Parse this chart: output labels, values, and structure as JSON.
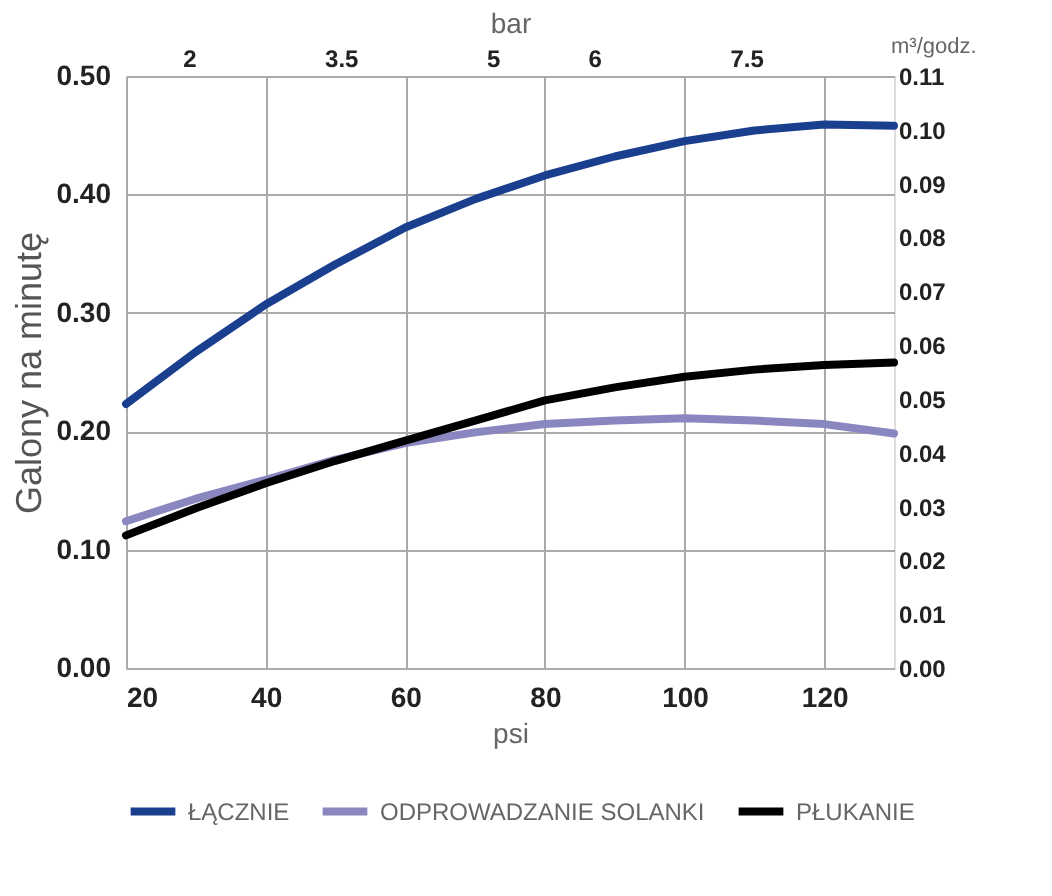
{
  "chart_data": {
    "type": "line",
    "xlabel": "psi",
    "ylabel": "Galony na minutę",
    "y2label": "m³/godz.",
    "x2label": "bar",
    "x": [
      20,
      30,
      40,
      50,
      60,
      70,
      80,
      90,
      100,
      110,
      120,
      130
    ],
    "series": [
      {
        "name": "ŁĄCZNIE",
        "color": "#1a3f8f",
        "values": [
          0.223,
          0.267,
          0.307,
          0.341,
          0.372,
          0.396,
          0.416,
          0.432,
          0.445,
          0.454,
          0.459,
          0.458
        ]
      },
      {
        "name": "ODPROWADZANIE SOLANKI",
        "color": "#8a86c0",
        "values": [
          0.124,
          0.143,
          0.159,
          0.176,
          0.19,
          0.199,
          0.206,
          0.209,
          0.211,
          0.209,
          0.206,
          0.198
        ]
      },
      {
        "name": "PŁUKANIE",
        "color": "#000000",
        "values": [
          0.112,
          0.135,
          0.156,
          0.175,
          0.192,
          0.209,
          0.226,
          0.237,
          0.246,
          0.252,
          0.256,
          0.258
        ]
      }
    ],
    "xlim": [
      20,
      130
    ],
    "xticks": [
      20,
      40,
      60,
      80,
      100,
      120
    ],
    "ylim": [
      0,
      0.5
    ],
    "yticks": [
      {
        "value": 0,
        "label": "0.00"
      },
      {
        "value": 0.1,
        "label": "0.10"
      },
      {
        "value": 0.2,
        "label": "0.20"
      },
      {
        "value": 0.3,
        "label": "0.30"
      },
      {
        "value": 0.4,
        "label": "0.40"
      },
      {
        "value": 0.5,
        "label": "0.50"
      }
    ],
    "y2lim": [
      0,
      0.11
    ],
    "y2ticks": [
      {
        "value": 0,
        "label": "0.00"
      },
      {
        "value": 0.01,
        "label": "0.01"
      },
      {
        "value": 0.02,
        "label": "0.02"
      },
      {
        "value": 0.03,
        "label": "0.03"
      },
      {
        "value": 0.04,
        "label": "0.04"
      },
      {
        "value": 0.05,
        "label": "0.05"
      },
      {
        "value": 0.06,
        "label": "0.06"
      },
      {
        "value": 0.07,
        "label": "0.07"
      },
      {
        "value": 0.08,
        "label": "0.08"
      },
      {
        "value": 0.09,
        "label": "0.09"
      },
      {
        "value": 0.1,
        "label": "0.10"
      },
      {
        "value": 0.11,
        "label": "0.11"
      }
    ],
    "x2lim": [
      1.38,
      8.96
    ],
    "x2ticks": [
      2,
      3.5,
      5,
      6,
      7.5
    ],
    "grid": true,
    "legend": "bottom",
    "marker": "none",
    "line_style": "solid"
  }
}
